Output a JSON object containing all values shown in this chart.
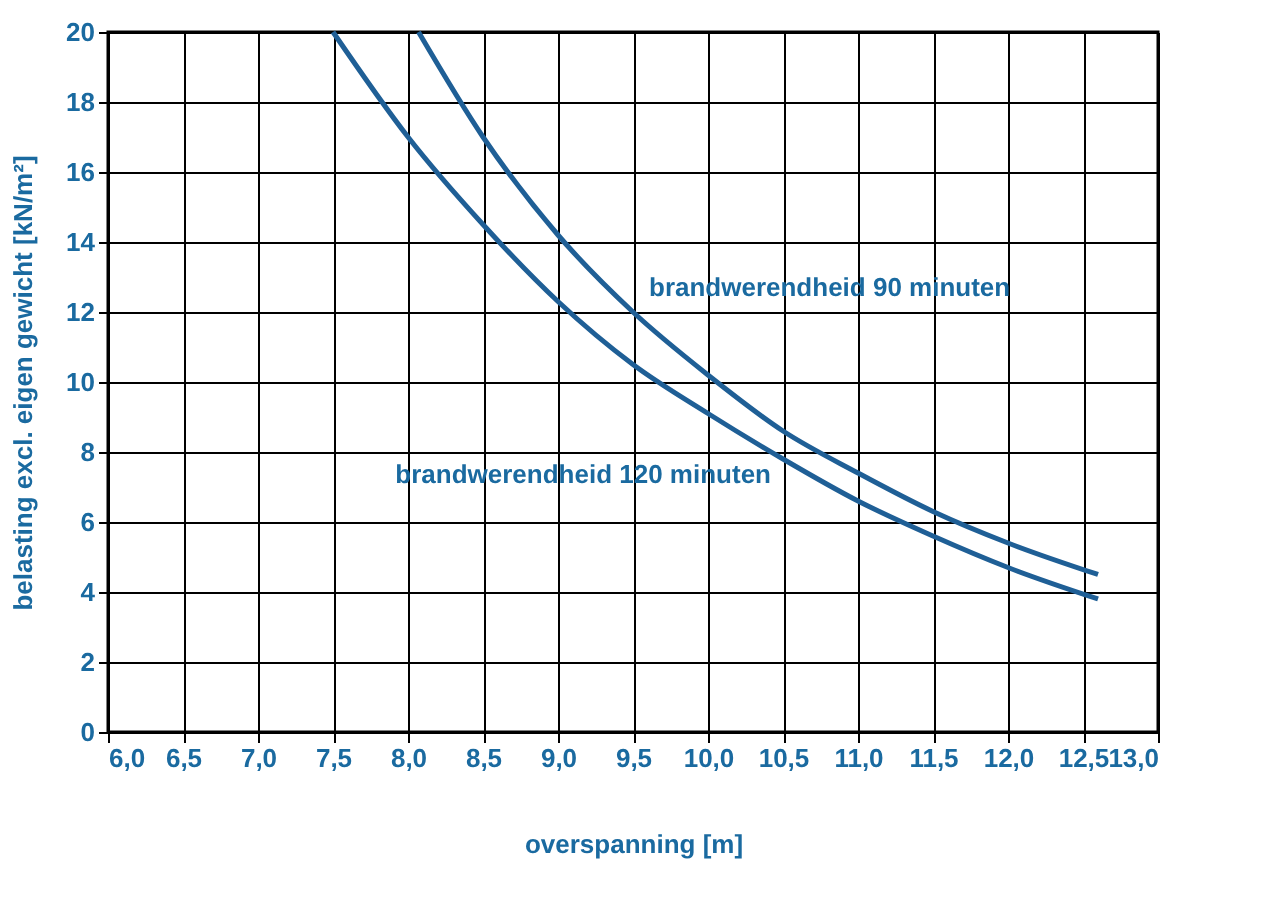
{
  "chart_data": {
    "type": "line",
    "xlabel": "overspanning [m]",
    "ylabel": "belasting excl. eigen gewicht [kN/m²]",
    "xlim": [
      6.0,
      13.0
    ],
    "xticks": [
      {
        "value": 6.0,
        "label": "6,0"
      },
      {
        "value": 6.5,
        "label": "6,5"
      },
      {
        "value": 7.0,
        "label": "7,0"
      },
      {
        "value": 7.5,
        "label": "7,5"
      },
      {
        "value": 8.0,
        "label": "8,0"
      },
      {
        "value": 8.5,
        "label": "8,5"
      },
      {
        "value": 9.0,
        "label": "9,0"
      },
      {
        "value": 9.5,
        "label": "9,5"
      },
      {
        "value": 10.0,
        "label": "10,0"
      },
      {
        "value": 10.5,
        "label": "10,5"
      },
      {
        "value": 11.0,
        "label": "11,0"
      },
      {
        "value": 11.5,
        "label": "11,5"
      },
      {
        "value": 12.0,
        "label": "12,0"
      },
      {
        "value": 12.5,
        "label": "12,5"
      },
      {
        "value": 13.0,
        "label": "13,0"
      }
    ],
    "ylim": [
      0,
      20
    ],
    "yticks": [
      0,
      2,
      4,
      6,
      8,
      10,
      12,
      14,
      16,
      18,
      20
    ],
    "grid": true,
    "line_style": "solid",
    "marker": "none",
    "series": [
      {
        "name": "brandwerendheid 90 minuten",
        "color": "#1f5f96",
        "x": [
          8.07,
          8.5,
          9.0,
          9.5,
          10.0,
          10.5,
          11.0,
          11.5,
          12.0,
          12.6
        ],
        "values": [
          20,
          17.0,
          14.2,
          12.0,
          10.2,
          8.6,
          7.4,
          6.3,
          5.4,
          4.5
        ]
      },
      {
        "name": "brandwerendheid 120 minuten",
        "color": "#1f5f96",
        "x": [
          7.5,
          8.0,
          8.5,
          9.0,
          9.5,
          10.0,
          10.5,
          11.0,
          11.5,
          12.0,
          12.6
        ],
        "values": [
          20,
          17.0,
          14.5,
          12.3,
          10.5,
          9.1,
          7.8,
          6.6,
          5.6,
          4.7,
          3.8
        ]
      }
    ]
  }
}
